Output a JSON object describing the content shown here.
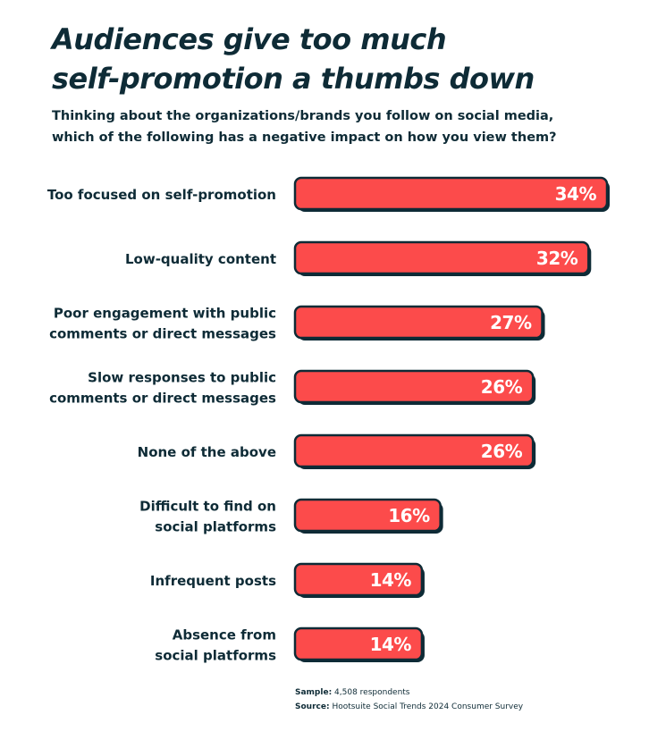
{
  "title_lines": [
    "Audiences give too much",
    "self-promotion a thumbs down"
  ],
  "subtitle_lines": [
    "Thinking about the organizations/brands you follow on social media,",
    "which of the following has a negative impact on how you view them?"
  ],
  "colors": {
    "bar_fill": "#fc4b4b",
    "bar_stroke": "#0e2b36",
    "text": "#0e2b36",
    "value_text": "#ffffff"
  },
  "chart_data": {
    "type": "bar",
    "orientation": "horizontal",
    "categories": [
      [
        "Too focused on self-promotion"
      ],
      [
        "Low-quality content"
      ],
      [
        "Poor engagement with public",
        "comments or direct messages"
      ],
      [
        "Slow responses to public",
        "comments or direct messages"
      ],
      [
        "None of the above"
      ],
      [
        "Difficult to find on",
        "social platforms"
      ],
      [
        "Infrequent posts"
      ],
      [
        "Absence from",
        "social platforms"
      ]
    ],
    "values": [
      34,
      32,
      27,
      26,
      26,
      16,
      14,
      14
    ],
    "value_labels": [
      "34%",
      "32%",
      "27%",
      "26%",
      "26%",
      "16%",
      "14%",
      "14%"
    ],
    "unit": "%",
    "xlabel": "",
    "ylabel": "",
    "grid": false,
    "legend": "none"
  },
  "footnotes": {
    "sample_label": "Sample:",
    "sample_text": "4,508 respondents",
    "source_label": "Source:",
    "source_text": "Hootsuite Social Trends 2024 Consumer Survey"
  }
}
